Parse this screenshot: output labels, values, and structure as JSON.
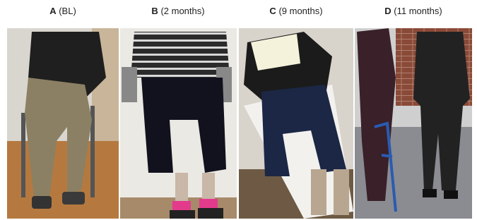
{
  "panels": [
    {
      "letter": "A",
      "caption": "(BL)"
    },
    {
      "letter": "B",
      "caption": "(2 months)"
    },
    {
      "letter": "C",
      "caption": "(9 months)"
    },
    {
      "letter": "D",
      "caption": "(11 months)"
    }
  ]
}
